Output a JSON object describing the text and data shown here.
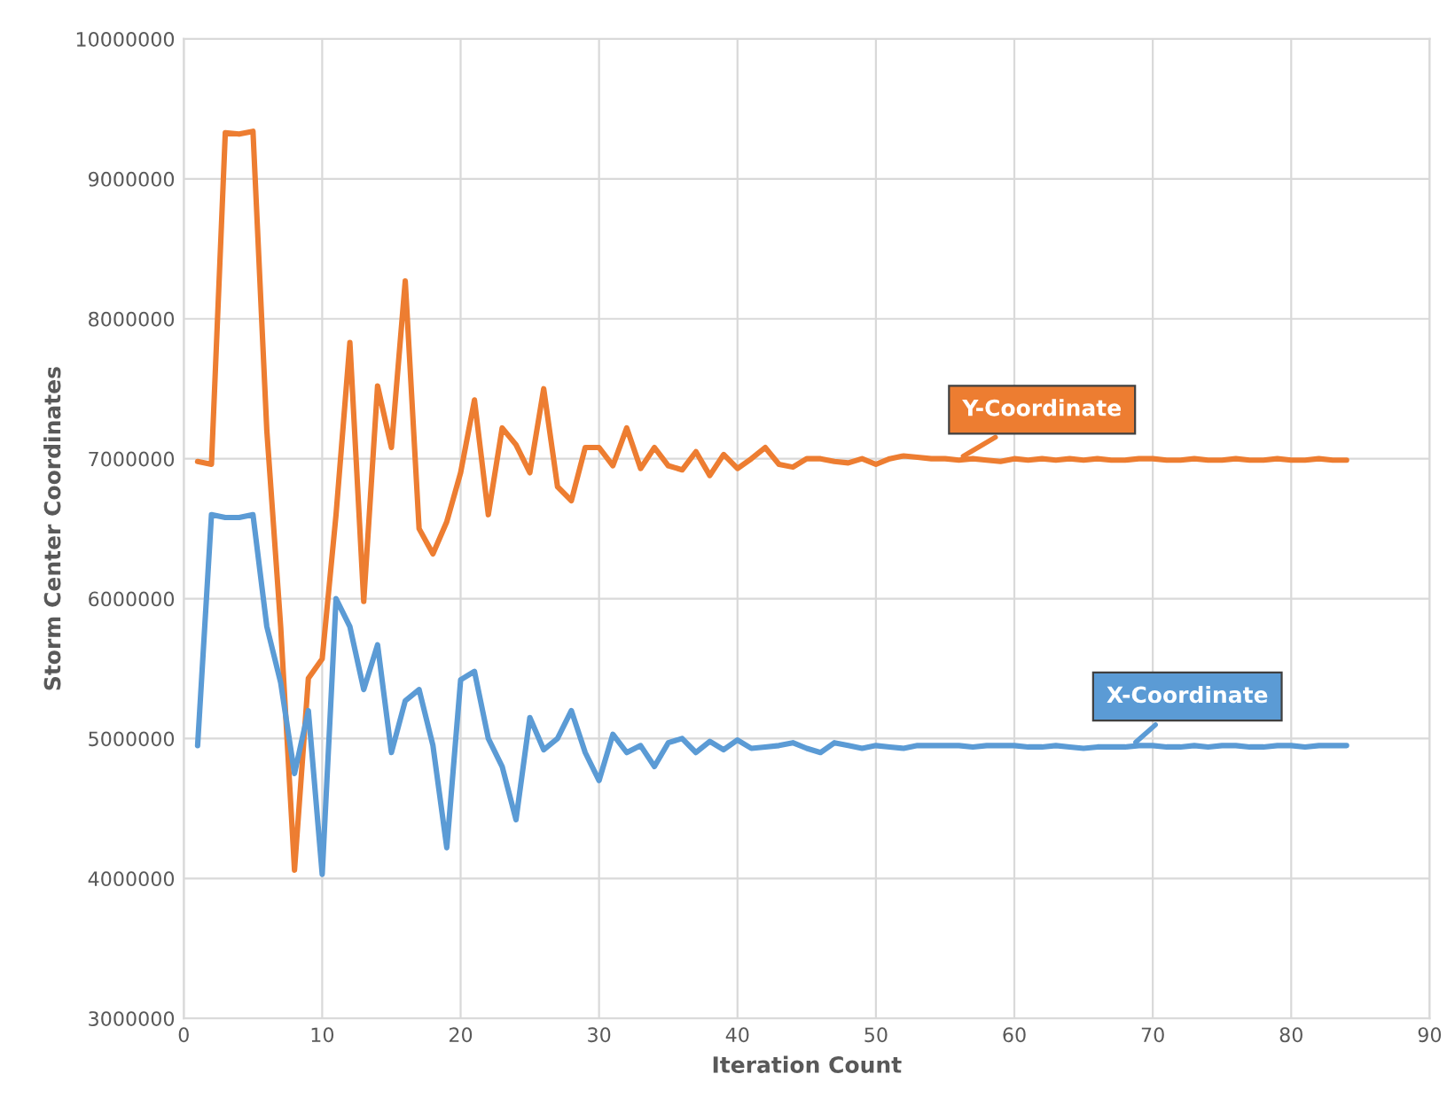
{
  "chart_data": {
    "type": "line",
    "xlabel": "Iteration Count",
    "ylabel": "Storm Center Coordinates",
    "x": [
      1,
      2,
      3,
      4,
      5,
      6,
      7,
      8,
      9,
      10,
      11,
      12,
      13,
      14,
      15,
      16,
      17,
      18,
      19,
      20,
      21,
      22,
      23,
      24,
      25,
      26,
      27,
      28,
      29,
      30,
      31,
      32,
      33,
      34,
      35,
      36,
      37,
      38,
      39,
      40,
      41,
      42,
      43,
      44,
      45,
      46,
      47,
      48,
      49,
      50,
      51,
      52,
      53,
      54,
      55,
      56,
      57,
      58,
      59,
      60,
      61,
      62,
      63,
      64,
      65,
      66,
      67,
      68,
      69,
      70,
      71,
      72,
      73,
      74,
      75,
      76,
      77,
      78,
      79,
      80,
      81,
      82,
      83,
      84
    ],
    "series": [
      {
        "color": "#ed7d31",
        "values": [
          6980000,
          6960000,
          9330000,
          9320000,
          9340000,
          7200000,
          5800000,
          4060000,
          5430000,
          5570000,
          6600000,
          7830000,
          5980000,
          7520000,
          7080000,
          8270000,
          6500000,
          6320000,
          6550000,
          6900000,
          7420000,
          6600000,
          7220000,
          7100000,
          6900000,
          7500000,
          6800000,
          6700000,
          7080000,
          7080000,
          6950000,
          7220000,
          6930000,
          7080000,
          6950000,
          6920000,
          7050000,
          6880000,
          7030000,
          6930000,
          7000000,
          7080000,
          6960000,
          6940000,
          7000000,
          7000000,
          6980000,
          6970000,
          7000000,
          6960000,
          7000000,
          7020000,
          7010000,
          7000000,
          7000000,
          6990000,
          7000000,
          6990000,
          6980000,
          7000000,
          6990000,
          7000000,
          6990000,
          7000000,
          6990000,
          7000000,
          6990000,
          6990000,
          7000000,
          7000000,
          6990000,
          6990000,
          7000000,
          6990000,
          6990000,
          7000000,
          6990000,
          6990000,
          7000000,
          6990000,
          6990000,
          7000000,
          6990000,
          6990000
        ]
      },
      {
        "color": "#5b9bd5",
        "values": [
          4950000,
          6600000,
          6580000,
          6580000,
          6600000,
          5800000,
          5400000,
          4750000,
          5200000,
          4030000,
          6000000,
          5800000,
          5350000,
          5670000,
          4900000,
          5270000,
          5350000,
          4950000,
          4220000,
          5420000,
          5480000,
          5000000,
          4800000,
          4420000,
          5150000,
          4920000,
          5000000,
          5200000,
          4900000,
          4700000,
          5030000,
          4900000,
          4950000,
          4800000,
          4970000,
          5000000,
          4900000,
          4980000,
          4920000,
          4990000,
          4930000,
          4940000,
          4950000,
          4970000,
          4930000,
          4900000,
          4970000,
          4950000,
          4930000,
          4950000,
          4940000,
          4930000,
          4950000,
          4950000,
          4950000,
          4950000,
          4940000,
          4950000,
          4950000,
          4950000,
          4940000,
          4940000,
          4950000,
          4940000,
          4930000,
          4940000,
          4940000,
          4940000,
          4950000,
          4950000,
          4940000,
          4940000,
          4950000,
          4940000,
          4950000,
          4950000,
          4940000,
          4940000,
          4950000,
          4950000,
          4940000,
          4950000,
          4950000,
          4950000
        ]
      }
    ],
    "annotations": [
      {
        "text": "Y-Coordinate",
        "x": 56,
        "y": 7000000
      },
      {
        "text": "X-Coordinate",
        "x": 68.5,
        "y": 4950000
      }
    ],
    "xlim": [
      0,
      90
    ],
    "xticks": [
      0,
      10,
      20,
      30,
      40,
      50,
      60,
      70,
      80,
      90
    ],
    "ylim": [
      3000000,
      10000000
    ],
    "yticks": [
      3000000,
      4000000,
      5000000,
      6000000,
      7000000,
      8000000,
      9000000,
      10000000
    ],
    "grid": true,
    "legend": false,
    "marker": "none",
    "line_style": "solid"
  }
}
